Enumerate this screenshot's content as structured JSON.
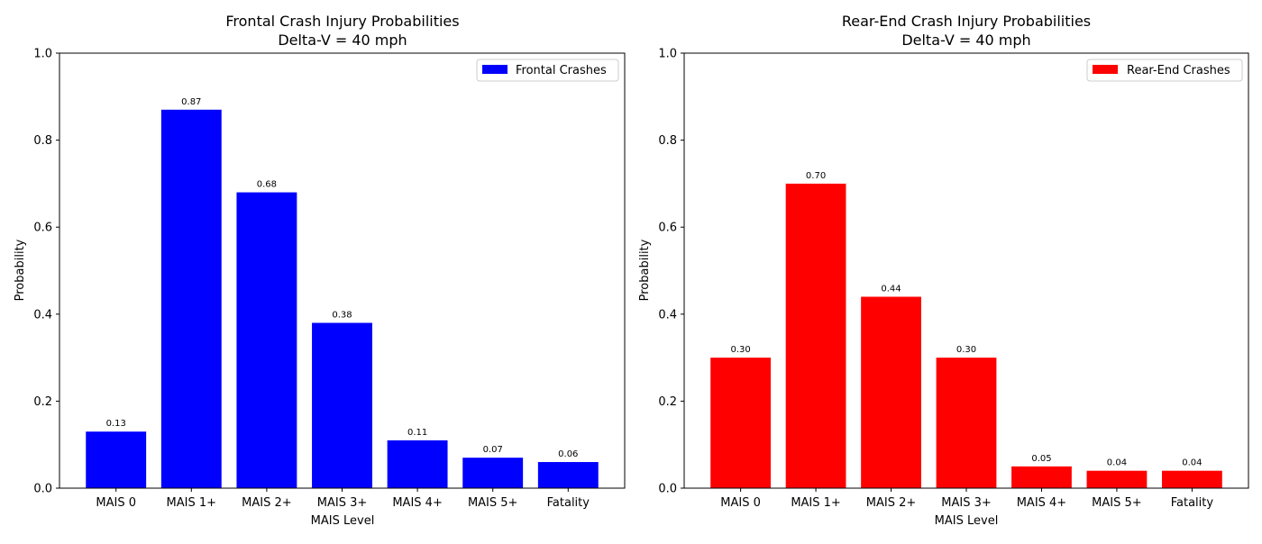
{
  "chart_data": [
    {
      "type": "bar",
      "title_line1": "Frontal Crash Injury Probabilities",
      "title_line2": "Delta-V = 40 mph",
      "xlabel": "MAIS Level",
      "ylabel": "Probability",
      "categories": [
        "MAIS 0",
        "MAIS 1+",
        "MAIS 2+",
        "MAIS 3+",
        "MAIS 4+",
        "MAIS 5+",
        "Fatality"
      ],
      "series": [
        {
          "name": "Frontal Crashes",
          "color": "#0000ff",
          "values": [
            0.13,
            0.87,
            0.68,
            0.38,
            0.11,
            0.07,
            0.06
          ]
        }
      ],
      "data_labels": [
        "0.13",
        "0.87",
        "0.68",
        "0.38",
        "0.11",
        "0.07",
        "0.06"
      ],
      "ylim": [
        0,
        1.0
      ],
      "yticks": [
        "0.0",
        "0.2",
        "0.4",
        "0.6",
        "0.8",
        "1.0"
      ],
      "legend": "top-right",
      "grid": false
    },
    {
      "type": "bar",
      "title_line1": "Rear-End Crash Injury Probabilities",
      "title_line2": "Delta-V = 40 mph",
      "xlabel": "MAIS Level",
      "ylabel": "Probability",
      "categories": [
        "MAIS 0",
        "MAIS 1+",
        "MAIS 2+",
        "MAIS 3+",
        "MAIS 4+",
        "MAIS 5+",
        "Fatality"
      ],
      "series": [
        {
          "name": "Rear-End Crashes",
          "color": "#ff0000",
          "values": [
            0.3,
            0.7,
            0.44,
            0.3,
            0.05,
            0.04,
            0.04
          ]
        }
      ],
      "data_labels": [
        "0.30",
        "0.70",
        "0.44",
        "0.30",
        "0.05",
        "0.04",
        "0.04"
      ],
      "ylim": [
        0,
        1.0
      ],
      "yticks": [
        "0.0",
        "0.2",
        "0.4",
        "0.6",
        "0.8",
        "1.0"
      ],
      "legend": "top-right",
      "grid": false
    }
  ]
}
